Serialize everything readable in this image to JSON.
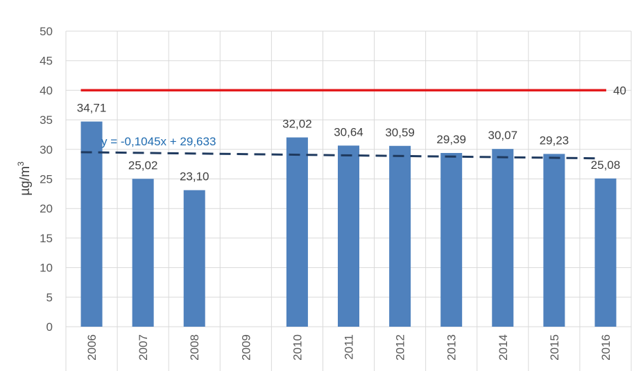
{
  "chart_data": {
    "type": "bar",
    "title": "",
    "xlabel": "",
    "ylabel": "µg/m",
    "ylabel_superscript": "3",
    "categories": [
      "2006",
      "2007",
      "2008",
      "2009",
      "2010",
      "2011",
      "2012",
      "2013",
      "2014",
      "2015",
      "2016"
    ],
    "values": [
      34.71,
      25.02,
      23.1,
      null,
      32.02,
      30.64,
      30.59,
      29.39,
      30.07,
      29.23,
      25.08
    ],
    "value_labels": [
      "34,71",
      "25,02",
      "23,10",
      "",
      "32,02",
      "30,64",
      "30,59",
      "29,39",
      "30,07",
      "29,23",
      "25,08"
    ],
    "ylim": [
      0,
      50
    ],
    "yticks": [
      0,
      5,
      10,
      15,
      20,
      25,
      30,
      35,
      40,
      45,
      50
    ],
    "grid": true,
    "colors": {
      "bar": "#4f81bd",
      "limit": "#e31a1c",
      "trend": "#1f3a5f",
      "equation": "#1f6bb0",
      "grid": "#d9d9d9"
    },
    "limit_line": {
      "value": 40,
      "label": "40"
    },
    "trendline": {
      "slope": -0.1045,
      "intercept": 29.633,
      "equation": "y = -0,1045x + 29,633"
    }
  }
}
